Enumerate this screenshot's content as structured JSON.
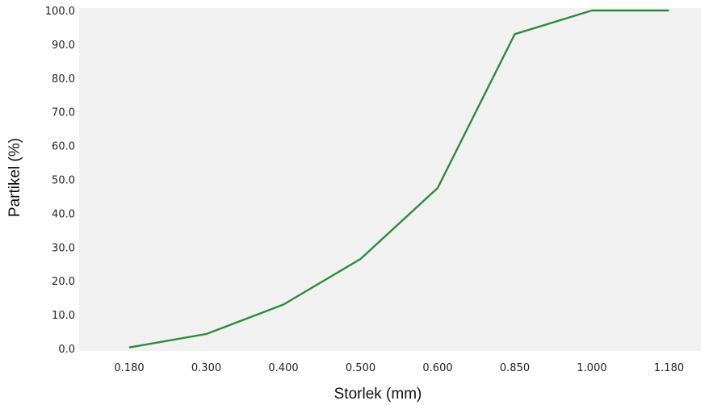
{
  "chart_data": {
    "type": "line",
    "title": "",
    "xlabel": "Storlek (mm)",
    "ylabel": "Partikel (%)",
    "categories": [
      "0.180",
      "0.300",
      "0.400",
      "0.500",
      "0.600",
      "0.850",
      "1.000",
      "1.180"
    ],
    "series": [
      {
        "values": [
          0.3,
          4.3,
          13.0,
          26.5,
          47.5,
          93.0,
          100.0,
          100.0
        ]
      }
    ],
    "y_ticks": [
      "0.0",
      "10.0",
      "20.0",
      "30.0",
      "40.0",
      "50.0",
      "60.0",
      "70.0",
      "80.0",
      "90.0",
      "100.0"
    ],
    "ylim": [
      0,
      100
    ],
    "grid": false,
    "legend": "none",
    "colors": {
      "line": "#2e8b3a",
      "plot_background": "#f1f1f1"
    }
  }
}
